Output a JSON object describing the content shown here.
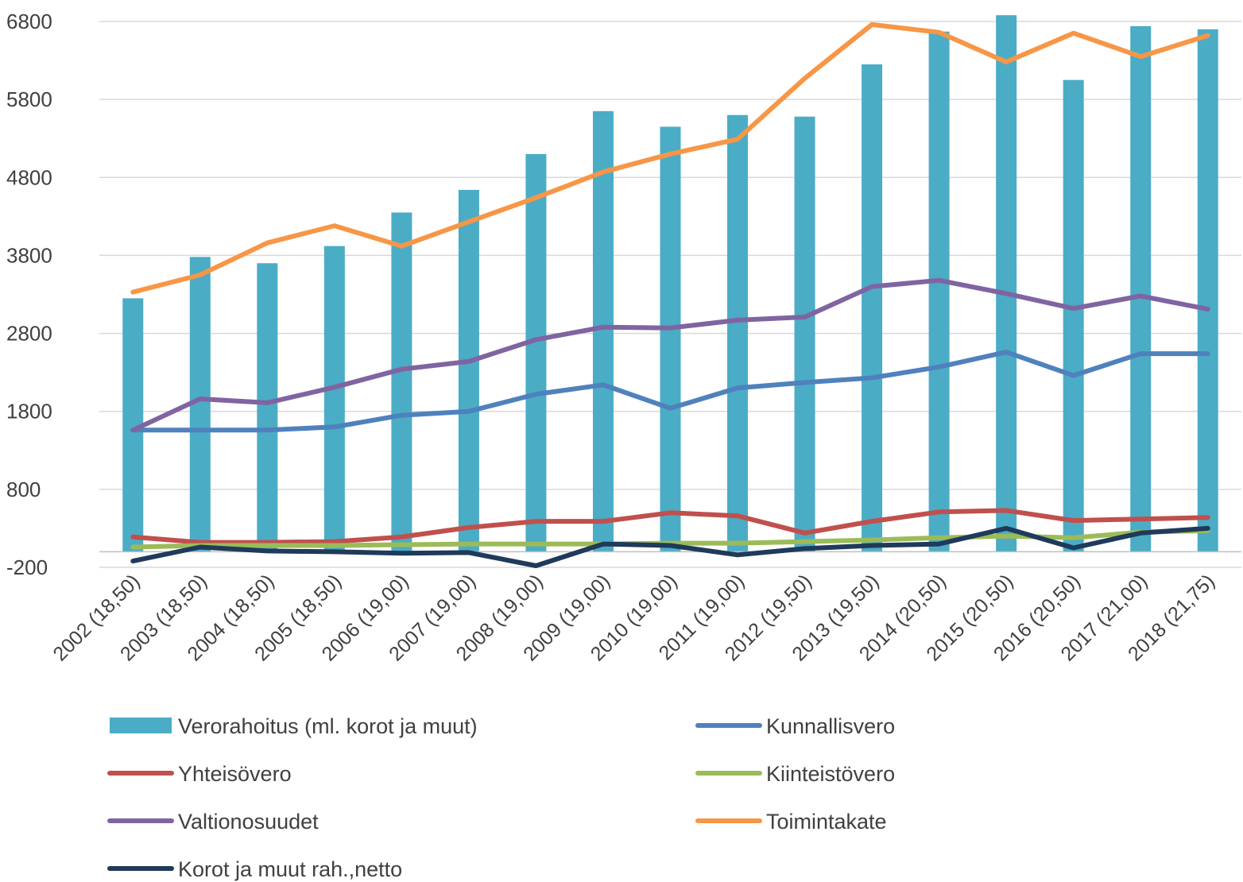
{
  "chart_data": {
    "type": "bar",
    "title": "",
    "xlabel": "",
    "ylabel": "",
    "ylim": [
      -200,
      6800
    ],
    "yticks": [
      -200,
      800,
      1800,
      2800,
      3800,
      4800,
      5800,
      6800
    ],
    "grid": true,
    "legend_position": "bottom",
    "categories": [
      "2002 (18,50)",
      "2003 (18,50)",
      "2004 (18,50)",
      "2005 (18,50)",
      "2006 (19,00)",
      "2007 (19,00)",
      "2008 (19,00)",
      "2009 (19,00)",
      "2010 (19,00)",
      "2011 (19,00)",
      "2012 (19,50)",
      "2013 (19,50)",
      "2014 (20,50)",
      "2015 (20,50)",
      "2016 (20,50)",
      "2017 (21,00)",
      "2018 (21,75)"
    ],
    "bars": {
      "name": "Verorahoitus (ml. korot ja muut)",
      "color": "#4BACC6",
      "values": [
        3250,
        3780,
        3700,
        3920,
        4350,
        4640,
        5100,
        5650,
        5450,
        5600,
        5580,
        6250,
        6670,
        6880,
        6050,
        6740,
        6700
      ]
    },
    "series": [
      {
        "name": "Kunnallisvero",
        "color": "#4F81BD",
        "values": [
          1560,
          1560,
          1560,
          1600,
          1750,
          1800,
          2020,
          2140,
          1840,
          2100,
          2170,
          2230,
          2370,
          2560,
          2260,
          2540,
          2540
        ]
      },
      {
        "name": "Yhteisövero",
        "color": "#C0504D",
        "values": [
          190,
          120,
          120,
          130,
          190,
          310,
          390,
          390,
          500,
          460,
          240,
          390,
          510,
          530,
          400,
          420,
          440
        ]
      },
      {
        "name": "Kiinteistövero",
        "color": "#9BBB59",
        "values": [
          60,
          80,
          80,
          80,
          90,
          100,
          100,
          100,
          110,
          110,
          130,
          150,
          180,
          200,
          180,
          250,
          270
        ]
      },
      {
        "name": "Valtionosuudet",
        "color": "#8064A2",
        "values": [
          1560,
          1960,
          1910,
          2110,
          2340,
          2440,
          2720,
          2880,
          2870,
          2970,
          3010,
          3400,
          3480,
          3310,
          3120,
          3280,
          3110
        ]
      },
      {
        "name": "Toimintakate",
        "color": "#F79646",
        "values": [
          3330,
          3550,
          3960,
          4180,
          3920,
          4230,
          4540,
          4870,
          5100,
          5290,
          6070,
          6760,
          6660,
          6280,
          6650,
          6350,
          6620
        ]
      },
      {
        "name": "Korot ja muut rah.,netto",
        "color": "#1F3A5A",
        "values": [
          -120,
          60,
          10,
          0,
          -20,
          -10,
          -180,
          100,
          80,
          -40,
          40,
          80,
          100,
          300,
          50,
          240,
          300
        ]
      }
    ]
  }
}
